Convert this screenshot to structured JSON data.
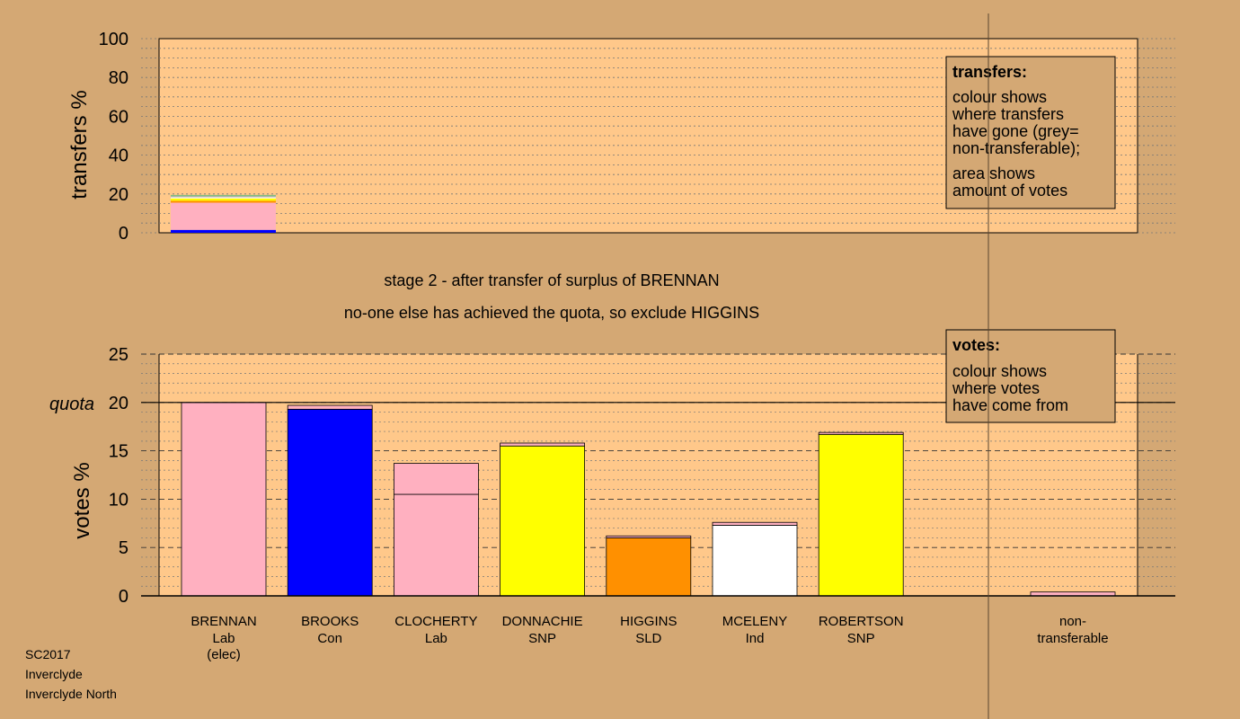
{
  "chart_data": [
    {
      "type": "bar",
      "stacked": true,
      "ylabel": "transfers %",
      "ylim": [
        0,
        100
      ],
      "yticks": [
        0,
        20,
        40,
        60,
        80,
        100
      ],
      "bars": [
        {
          "category": "BRENNAN",
          "segments": [
            {
              "color": "#0000ff",
              "value": 1.5
            },
            {
              "color": "#ffb0c0",
              "value": 14
            },
            {
              "color": "#ff9000",
              "value": 1
            },
            {
              "color": "#ffff00",
              "value": 1.2
            },
            {
              "color": "#ffffff",
              "value": 0.6
            },
            {
              "color": "#aaaaaa",
              "value": 0.6
            },
            {
              "color": "#80c080",
              "value": 0.6
            }
          ]
        }
      ],
      "legend": {
        "title": "transfers:",
        "lines1": [
          "colour shows",
          "where transfers",
          "have gone (grey=",
          "non-transferable);"
        ],
        "lines2": [
          "area shows",
          "amount of votes"
        ]
      }
    },
    {
      "type": "bar",
      "stacked": true,
      "ylabel": "votes %",
      "ylim": [
        0,
        25
      ],
      "yticks": [
        0,
        5,
        10,
        15,
        20,
        25
      ],
      "quota": 20,
      "quota_label": "quota",
      "categories": [
        {
          "name": "BRENNAN",
          "party": "Lab",
          "extra": "(elec)"
        },
        {
          "name": "BROOKS",
          "party": "Con",
          "extra": ""
        },
        {
          "name": "CLOCHERTY",
          "party": "Lab",
          "extra": ""
        },
        {
          "name": "DONNACHIE",
          "party": "SNP",
          "extra": ""
        },
        {
          "name": "HIGGINS",
          "party": "SLD",
          "extra": ""
        },
        {
          "name": "MCELENY",
          "party": "Ind",
          "extra": ""
        },
        {
          "name": "ROBERTSON",
          "party": "SNP",
          "extra": ""
        }
      ],
      "bars": [
        {
          "segments": [
            {
              "color": "#ffb0c0",
              "value": 20.0
            }
          ]
        },
        {
          "segments": [
            {
              "color": "#0000ff",
              "value": 19.3
            },
            {
              "color": "#ffb0c0",
              "value": 0.4
            }
          ]
        },
        {
          "segments": [
            {
              "color": "#ffb0c0",
              "value": 10.5
            },
            {
              "color": "#ffb0c0",
              "value": 3.2
            }
          ]
        },
        {
          "segments": [
            {
              "color": "#ffff00",
              "value": 15.5
            },
            {
              "color": "#ffb0c0",
              "value": 0.3
            }
          ]
        },
        {
          "segments": [
            {
              "color": "#ff9000",
              "value": 6.0
            },
            {
              "color": "#ffb0c0",
              "value": 0.2
            }
          ]
        },
        {
          "segments": [
            {
              "color": "#ffffff",
              "value": 7.3
            },
            {
              "color": "#ffb0c0",
              "value": 0.3
            }
          ]
        },
        {
          "segments": [
            {
              "color": "#ffff00",
              "value": 16.7
            },
            {
              "color": "#ffb0c0",
              "value": 0.2
            }
          ]
        }
      ],
      "nontransferable": {
        "label1": "non-",
        "label2": "transferable",
        "value": 0.4,
        "color": "#ffb0c0"
      },
      "legend": {
        "title": "votes:",
        "lines": [
          "colour shows",
          "where votes",
          "have come from"
        ]
      }
    }
  ],
  "stage_line1": "stage 2 - after transfer of surplus of BRENNAN",
  "stage_line2": "no-one else has achieved the quota, so exclude HIGGINS",
  "footer": [
    "SC2017",
    "Inverclyde",
    "Inverclyde North"
  ]
}
